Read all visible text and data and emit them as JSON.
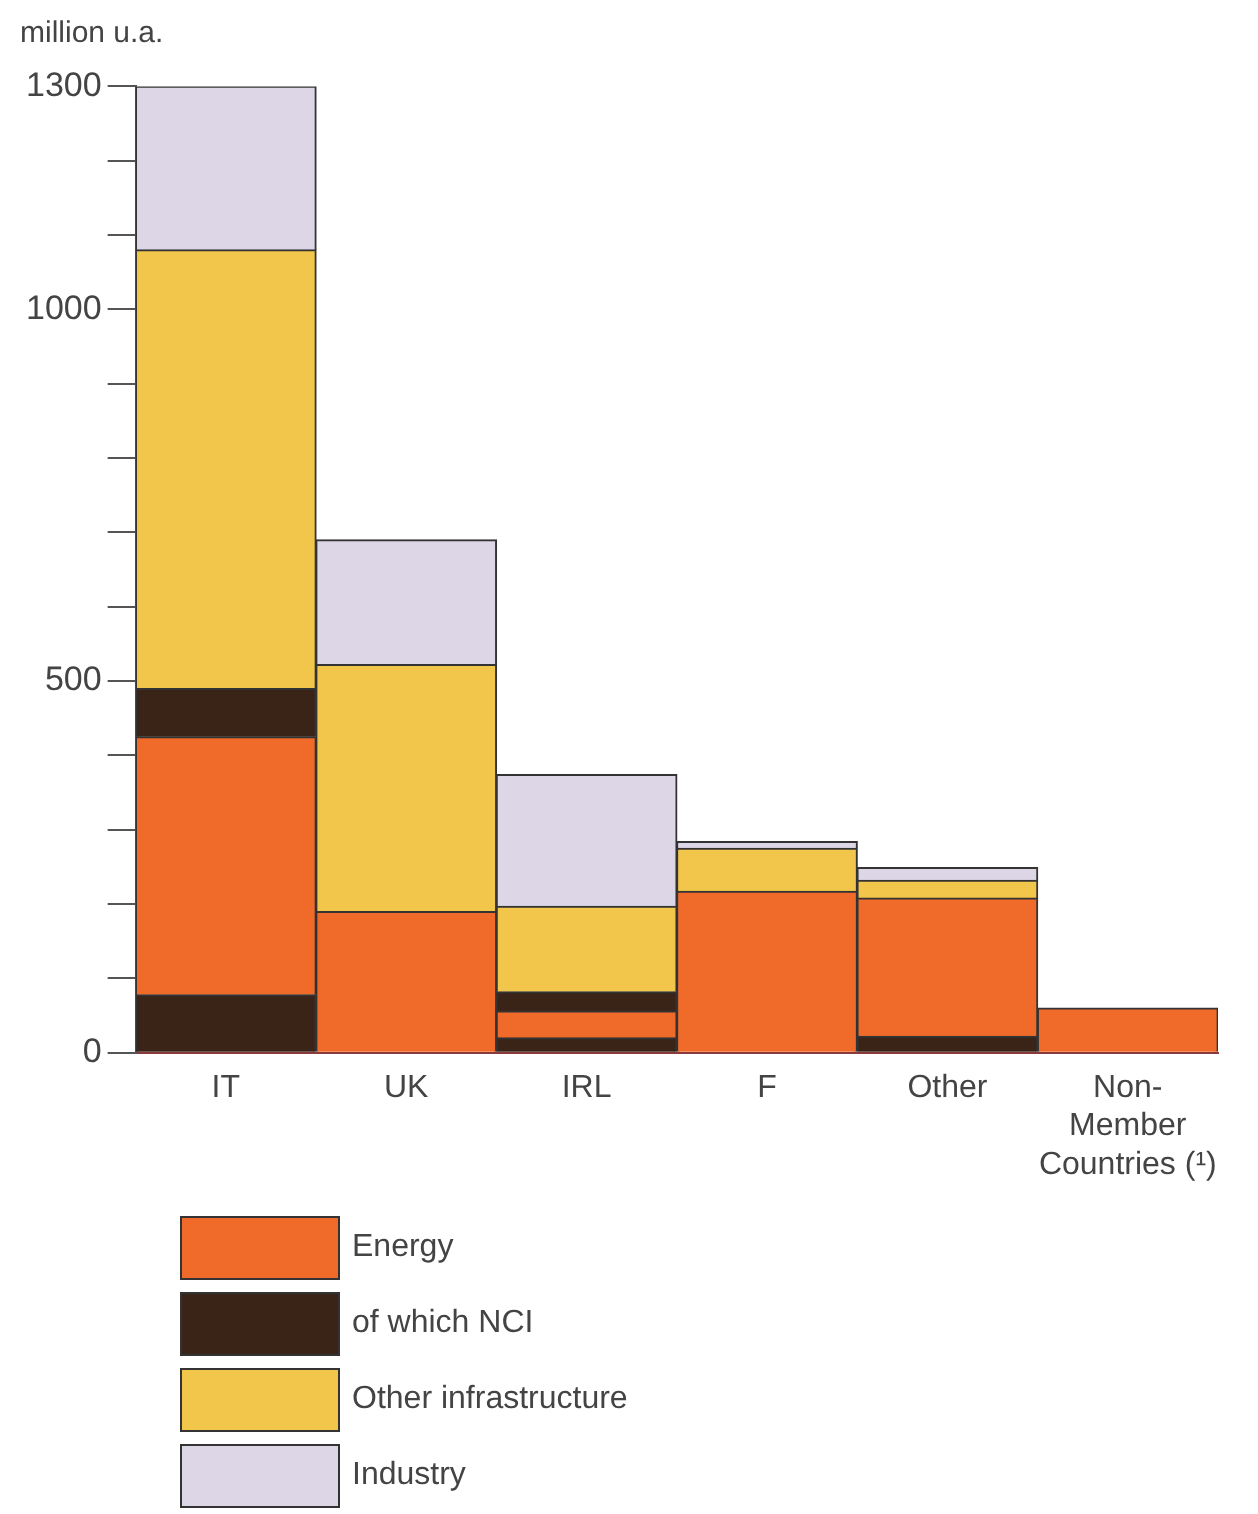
{
  "chart_data": {
    "type": "bar",
    "stacked": true,
    "ylabel": "million u.a.",
    "categories": [
      "IT",
      "UK",
      "IRL",
      "F",
      "Other",
      "Non-\nMember\nCountries (¹)"
    ],
    "series": [
      {
        "color": "#3a2418",
        "values": [
          78,
          0,
          20,
          0,
          22,
          0
        ]
      },
      {
        "name": "Energy",
        "color": "#f06a2a",
        "values": [
          347,
          190,
          36,
          217,
          186,
          60
        ]
      },
      {
        "name": "of which NCI",
        "color": "#3a2418",
        "values": [
          65,
          0,
          26,
          0,
          0,
          0
        ]
      },
      {
        "name": "Other infrastructure",
        "color": "#f2c64a",
        "values": [
          590,
          332,
          115,
          58,
          24,
          0
        ]
      },
      {
        "name": "Industry",
        "color": "#ddd6e6",
        "values": [
          220,
          168,
          177,
          9,
          17,
          0
        ]
      }
    ],
    "ylim": [
      0,
      1300
    ],
    "yticks": [
      0,
      {
        "value": 100,
        "label": null
      },
      {
        "value": 200,
        "label": null
      },
      {
        "value": 300,
        "label": null
      },
      {
        "value": 400,
        "label": null
      },
      500,
      {
        "value": 600,
        "label": null
      },
      {
        "value": 700,
        "label": null
      },
      {
        "value": 800,
        "label": null
      },
      {
        "value": 900,
        "label": null
      },
      1000,
      {
        "value": 1100,
        "label": null
      },
      {
        "value": 1200,
        "label": null
      },
      1300
    ],
    "grid": false,
    "legend": "bottom"
  }
}
